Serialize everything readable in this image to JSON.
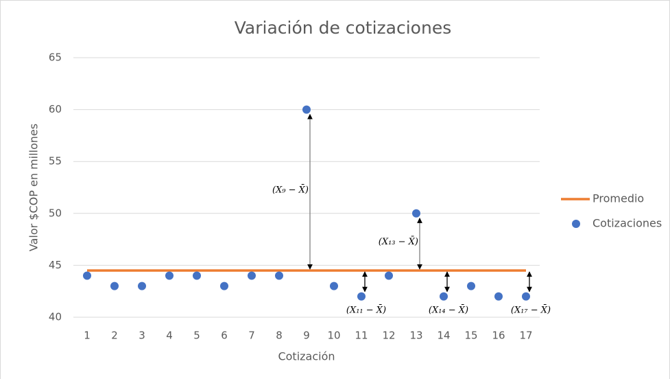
{
  "chart_data": {
    "type": "scatter",
    "title": "Variación de cotizaciones",
    "y_label": "Valor $COP en millones",
    "x_label": "Cotización",
    "categories": [
      "1",
      "2",
      "3",
      "4",
      "5",
      "6",
      "7",
      "8",
      "9",
      "10",
      "11",
      "12",
      "13",
      "14",
      "15",
      "16",
      "17"
    ],
    "series": [
      {
        "name": "Promedio",
        "type": "line",
        "color": "#ed7d31",
        "values": [
          44.5,
          44.5,
          44.5,
          44.5,
          44.5,
          44.5,
          44.5,
          44.5,
          44.5,
          44.5,
          44.5,
          44.5,
          44.5,
          44.5,
          44.5,
          44.5,
          44.5
        ]
      },
      {
        "name": "Cotizaciones",
        "type": "scatter",
        "color": "#4472c4",
        "values": [
          44,
          43,
          43,
          44,
          44,
          43,
          44,
          44,
          60,
          43,
          42,
          44,
          50,
          42,
          43,
          42,
          42
        ]
      }
    ],
    "ylim": [
      40,
      65
    ],
    "yticks": [
      40,
      45,
      50,
      55,
      60,
      65
    ],
    "grid": true,
    "legend": "right",
    "annotations": [
      {
        "label": "(X₉ − X̄)",
        "category": "9"
      },
      {
        "label": "(X₁₁ − X̄)",
        "category": "11"
      },
      {
        "label": "(X₁₃ − X̄)",
        "category": "13"
      },
      {
        "label": "(X₁₄ − X̄)",
        "category": "14"
      },
      {
        "label": "(X₁₇ − X̄)",
        "category": "17"
      }
    ]
  }
}
